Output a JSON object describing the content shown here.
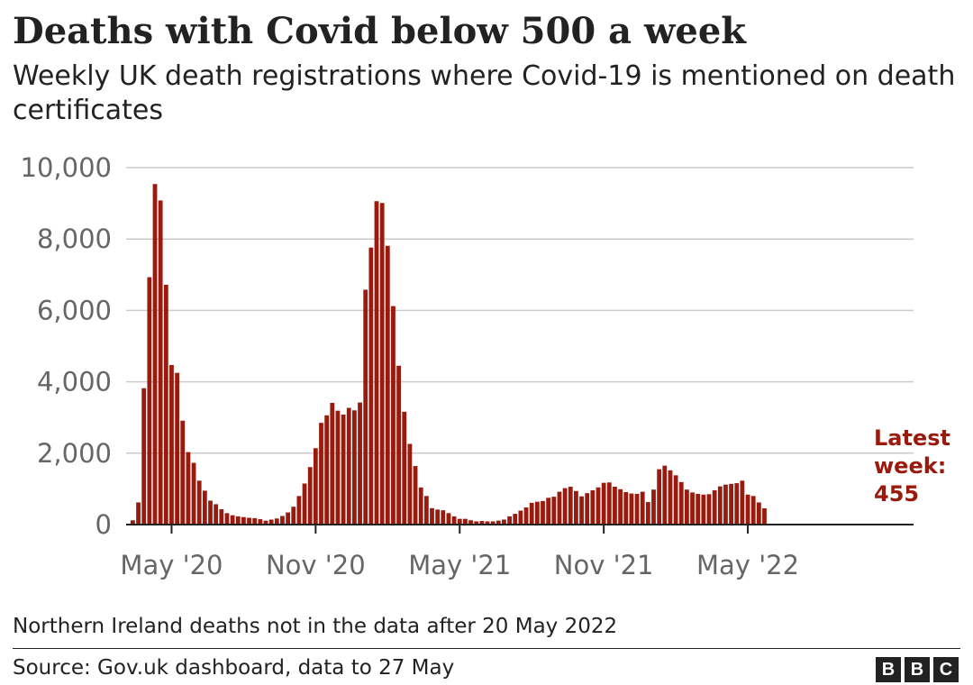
{
  "header": {
    "title": "Deaths with Covid below 500 a week",
    "subtitle": "Weekly UK death registrations where Covid-19 is mentioned on death certificates"
  },
  "footer": {
    "note": "Northern Ireland deaths not in the data after 20 May 2022",
    "source": "Source: Gov.uk dashboard, data to 27 May",
    "logo_letters": [
      "B",
      "B",
      "C"
    ]
  },
  "colors": {
    "bar": "#9a1a0e",
    "grid": "#cccccc",
    "axis": "#222222"
  },
  "chart_data": {
    "type": "bar",
    "title": "Deaths with Covid below 500 a week",
    "xlabel": "",
    "ylabel": "",
    "ylim": [
      0,
      10000
    ],
    "y_ticks": [
      0,
      2000,
      4000,
      6000,
      8000,
      10000
    ],
    "y_tick_labels": [
      "0",
      "2,000",
      "4,000",
      "6,000",
      "8,000",
      "10,000"
    ],
    "x_tick_labels": [
      "May '20",
      "Nov '20",
      "May '21",
      "Nov '21",
      "May '22"
    ],
    "x_tick_positions": [
      7,
      33,
      59,
      85,
      111
    ],
    "grid": true,
    "series": [
      {
        "values": [
          120,
          620,
          3820,
          6930,
          9540,
          9080,
          6720,
          4470,
          4250,
          2910,
          2030,
          1730,
          1230,
          950,
          670,
          570,
          430,
          320,
          260,
          230,
          210,
          190,
          180,
          150,
          110,
          140,
          170,
          240,
          340,
          500,
          800,
          1150,
          1610,
          2140,
          2850,
          3060,
          3410,
          3190,
          3080,
          3270,
          3200,
          3420,
          6580,
          7760,
          9060,
          9010,
          7810,
          6120,
          4450,
          3160,
          2260,
          1640,
          1040,
          800,
          460,
          420,
          400,
          320,
          230,
          160,
          160,
          120,
          90,
          100,
          90,
          90,
          110,
          140,
          230,
          300,
          390,
          480,
          610,
          640,
          660,
          750,
          780,
          920,
          1020,
          1060,
          940,
          790,
          880,
          960,
          1040,
          1170,
          1180,
          1060,
          990,
          910,
          870,
          860,
          920,
          630,
          980,
          1550,
          1650,
          1520,
          1380,
          1190,
          980,
          900,
          860,
          840,
          850,
          960,
          1070,
          1120,
          1140,
          1160,
          1230,
          840,
          800,
          620,
          455
        ]
      }
    ],
    "annotation": {
      "lines": [
        "Latest",
        "week:",
        "455"
      ]
    }
  }
}
